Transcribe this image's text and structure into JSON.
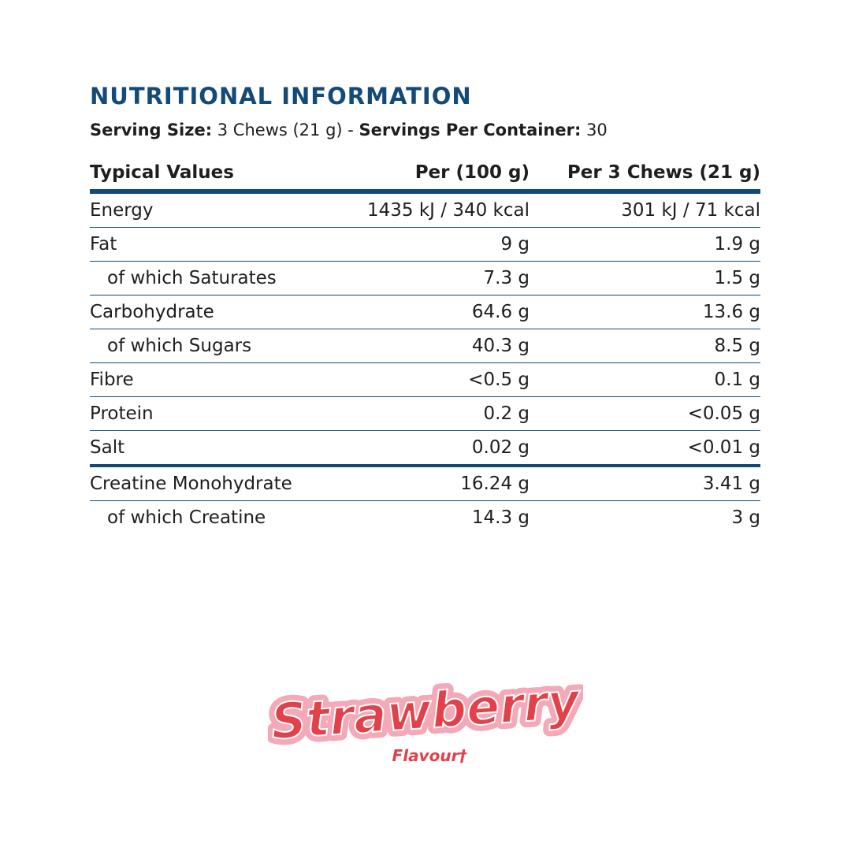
{
  "heading": "NUTRITIONAL INFORMATION",
  "serving": {
    "size_label": "Serving Size:",
    "size_value": " 3 Chews (21 g) - ",
    "servings_label": "Servings Per Container:",
    "servings_value": " 30"
  },
  "table": {
    "headers": [
      "Typical Values",
      "Per (100 g)",
      "Per 3 Chews (21 g)"
    ],
    "rows": [
      {
        "label": "Energy",
        "per100": "1435 kJ / 340 kcal",
        "perServing": "301 kJ / 71 kcal"
      },
      {
        "label": "Fat",
        "per100": "9 g",
        "perServing": "1.9 g"
      },
      {
        "label": "of which Saturates",
        "per100": "7.3 g",
        "perServing": "1.5 g"
      },
      {
        "label": "Carbohydrate",
        "per100": "64.6 g",
        "perServing": "13.6 g"
      },
      {
        "label": "of which Sugars",
        "per100": "40.3 g",
        "perServing": "8.5 g"
      },
      {
        "label": "Fibre",
        "per100": "<0.5 g",
        "perServing": "0.1 g"
      },
      {
        "label": "Protein",
        "per100": "0.2 g",
        "perServing": "<0.05 g"
      },
      {
        "label": "Salt",
        "per100": "0.02 g",
        "perServing": "<0.01 g"
      },
      {
        "label": "Creatine Monohydrate",
        "per100": "16.24 g",
        "perServing": "3.41 g"
      },
      {
        "label": "of which Creatine",
        "per100": "14.3 g",
        "perServing": "3 g"
      }
    ]
  },
  "flavour": {
    "name": "Strawberry",
    "label": "Flavour†"
  },
  "colors": {
    "heading_blue": "#134a78",
    "flavour_red": "#e2414a",
    "flavour_pink_outline": "#f4a9b8"
  }
}
